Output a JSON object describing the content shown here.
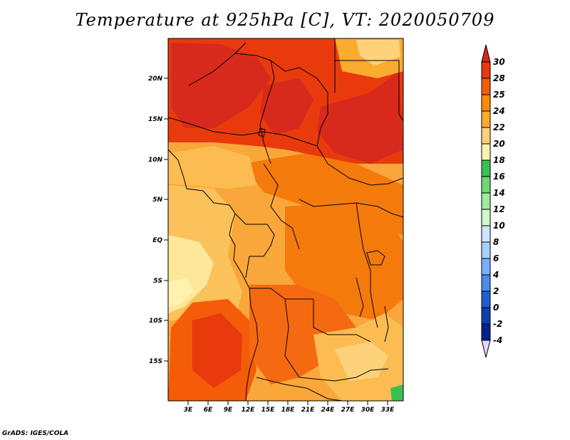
{
  "title": "Temperature at 925hPa [C], VT: 2020050709",
  "credit": "GrADS: IGES/COLA",
  "map": {
    "lat_ticks": [
      "20N",
      "15N",
      "10N",
      "5N",
      "EQ",
      "5S",
      "10S",
      "15S"
    ],
    "lon_ticks": [
      "3E",
      "6E",
      "9E",
      "12E",
      "15E",
      "18E",
      "21E",
      "24E",
      "27E",
      "30E",
      "33E"
    ]
  },
  "colorbar": {
    "labels": [
      "30",
      "28",
      "25",
      "24",
      "22",
      "20",
      "18",
      "16",
      "14",
      "12",
      "10",
      "8",
      "6",
      "4",
      "2",
      "0",
      "-2",
      "-4"
    ],
    "colors_top_to_bottom": [
      "#d7291c",
      "#e83a0d",
      "#f55c0a",
      "#f98a0a",
      "#fbab2e",
      "#fdd27a",
      "#fff2ae",
      "#3ac050",
      "#6fd874",
      "#a0eaa0",
      "#d2f8ce",
      "#cce6ff",
      "#a8d0ff",
      "#78b0ff",
      "#4a8ce8",
      "#1f60d0",
      "#0c3fb0",
      "#09228a",
      "#0a0a62",
      "#e1d6ff"
    ]
  }
}
